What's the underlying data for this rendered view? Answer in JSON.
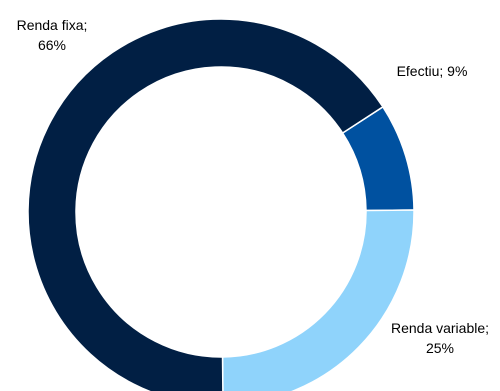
{
  "chart_data": {
    "type": "pie",
    "style": "donut",
    "start_angle_deg": 57,
    "direction": "clockwise",
    "slices": [
      {
        "name": "Efectiu",
        "value": 9,
        "label_text": "Efectiu; 9%",
        "color": "#0051A0"
      },
      {
        "name": "Renda variable",
        "value": 25,
        "label_text": [
          "Renda variable;",
          "25%"
        ],
        "color": "#8FD3FB"
      },
      {
        "name": "Renda fixa",
        "value": 66,
        "label_text": [
          "Renda fixa;",
          "66%"
        ],
        "color": "#011F44"
      }
    ],
    "legend": "none",
    "separator_color": "#ffffff"
  }
}
